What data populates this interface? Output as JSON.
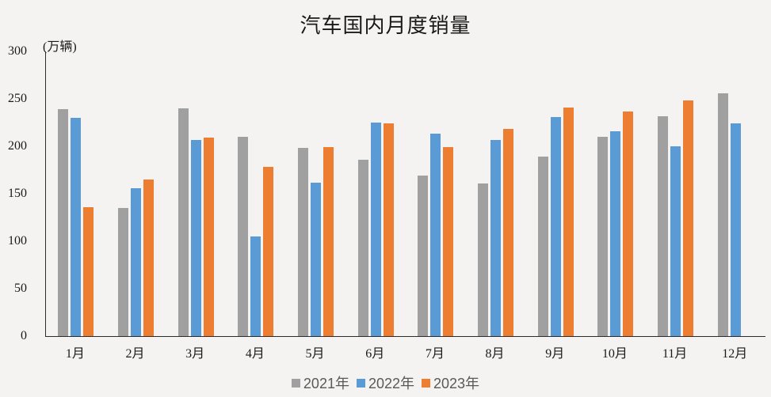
{
  "page": {
    "background_color": "#f4f3f2"
  },
  "chart_data": {
    "type": "bar",
    "title": "汽车国内月度销量",
    "unit_label": "(万辆)",
    "categories": [
      "1月",
      "2月",
      "3月",
      "4月",
      "5月",
      "6月",
      "7月",
      "8月",
      "9月",
      "10月",
      "11月",
      "12月"
    ],
    "series": [
      {
        "name": "2021年",
        "color": "#A0A0A0",
        "values": [
          239,
          135,
          240,
          210,
          198,
          186,
          169,
          161,
          189,
          210,
          232,
          256
        ]
      },
      {
        "name": "2022年",
        "color": "#5B9BD5",
        "values": [
          230,
          156,
          207,
          105,
          162,
          225,
          213,
          207,
          231,
          216,
          200,
          224
        ]
      },
      {
        "name": "2023年",
        "color": "#ED7D31",
        "values": [
          136,
          165,
          209,
          178,
          199,
          224,
          199,
          218,
          241,
          237,
          248,
          null
        ]
      }
    ],
    "ylim": [
      0,
      300
    ],
    "yticks": [
      0,
      50,
      100,
      150,
      200,
      250,
      300
    ],
    "grid": false,
    "legend_position": "bottom"
  }
}
